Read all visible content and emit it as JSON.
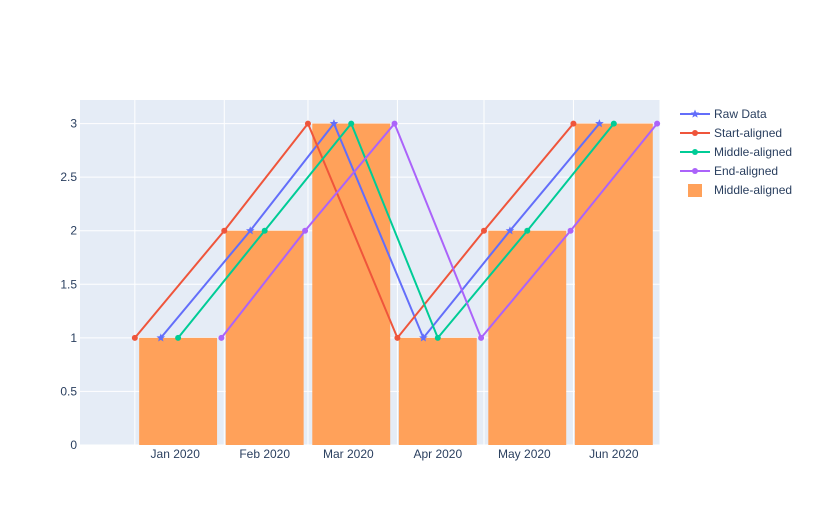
{
  "chart_data": {
    "type": "bar",
    "title": "",
    "xlabel": "",
    "ylabel": "",
    "ylim": [
      0,
      3.22
    ],
    "x_range": [
      "2019-12-13",
      "2020-07-01"
    ],
    "yticks": [
      0,
      0.5,
      1,
      1.5,
      2,
      2.5,
      3
    ],
    "ytick_labels": [
      "0",
      "0.5",
      "1",
      "1.5",
      "2",
      "2.5",
      "3"
    ],
    "xticks": [
      "2020-01-15",
      "2020-02-15",
      "2020-03-15",
      "2020-04-15",
      "2020-05-15",
      "2020-06-15"
    ],
    "xtick_labels": [
      "Jan 2020",
      "Feb 2020",
      "Mar 2020",
      "Apr 2020",
      "May 2020",
      "Jun 2020"
    ],
    "grid": true,
    "legend_position": "right",
    "series": [
      {
        "name": "Raw Data",
        "kind": "line",
        "marker": "star",
        "color": "#636efa",
        "x": [
          "2020-01-10",
          "2020-02-10",
          "2020-03-10",
          "2020-04-10",
          "2020-05-10",
          "2020-06-10"
        ],
        "values": [
          1,
          2,
          3,
          1,
          2,
          3
        ]
      },
      {
        "name": "Start-aligned",
        "kind": "line",
        "marker": "circle",
        "color": "#EF553B",
        "x": [
          "2020-01-01",
          "2020-02-01",
          "2020-03-01",
          "2020-04-01",
          "2020-05-01",
          "2020-06-01"
        ],
        "values": [
          1,
          2,
          3,
          1,
          2,
          3
        ]
      },
      {
        "name": "Middle-aligned",
        "kind": "line",
        "marker": "circle",
        "color": "#00cc96",
        "x": [
          "2020-01-16",
          "2020-02-15",
          "2020-03-16",
          "2020-04-15",
          "2020-05-16",
          "2020-06-15"
        ],
        "values": [
          1,
          2,
          3,
          1,
          2,
          3
        ]
      },
      {
        "name": "End-aligned",
        "kind": "line",
        "marker": "circle",
        "color": "#ab63fa",
        "x": [
          "2020-01-31",
          "2020-02-29",
          "2020-03-31",
          "2020-04-30",
          "2020-05-31",
          "2020-06-30"
        ],
        "values": [
          1,
          2,
          3,
          1,
          2,
          3
        ]
      },
      {
        "name": "Middle-aligned",
        "kind": "bar",
        "color": "#FFA15A",
        "x": [
          "2020-01-16",
          "2020-02-15",
          "2020-03-16",
          "2020-04-15",
          "2020-05-16",
          "2020-06-15"
        ],
        "values": [
          1,
          2,
          3,
          1,
          2,
          3
        ]
      }
    ]
  }
}
